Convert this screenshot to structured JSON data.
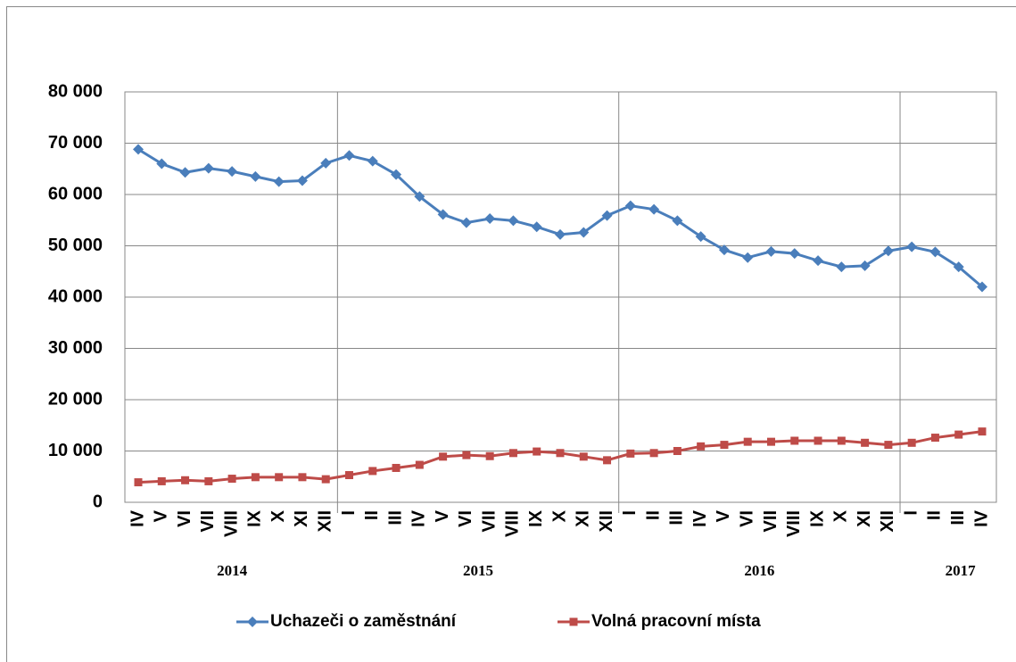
{
  "chart_data": {
    "type": "line",
    "category_groups": [
      {
        "label": "2014",
        "categories": [
          "IV",
          "V",
          "VI",
          "VII",
          "VIII",
          "IX",
          "X",
          "XI",
          "XII"
        ]
      },
      {
        "label": "2015",
        "categories": [
          "I",
          "II",
          "III",
          "IV",
          "V",
          "VI",
          "VII",
          "VIII",
          "IX",
          "X",
          "XI",
          "XII"
        ]
      },
      {
        "label": "2016",
        "categories": [
          "I",
          "II",
          "III",
          "IV",
          "V",
          "VI",
          "VII",
          "VIII",
          "IX",
          "X",
          "XI",
          "XII"
        ]
      },
      {
        "label": "2017",
        "categories": [
          "I",
          "II",
          "III",
          "IV"
        ]
      }
    ],
    "series": [
      {
        "name": "Uchazeči o zaměstnání",
        "color": "#4a7ebb",
        "marker": "diamond",
        "values": [
          68800,
          66000,
          64300,
          65100,
          64500,
          63500,
          62500,
          62700,
          66100,
          67600,
          66500,
          63900,
          59600,
          56100,
          54500,
          55300,
          54900,
          53700,
          52200,
          52600,
          55900,
          57800,
          57100,
          54900,
          51800,
          49200,
          47700,
          48900,
          48500,
          47100,
          45900,
          46100,
          49000,
          49800,
          48800,
          45900,
          42000
        ]
      },
      {
        "name": "Volná pracovní místa",
        "color": "#be4b48",
        "marker": "square",
        "values": [
          3900,
          4100,
          4300,
          4100,
          4600,
          4900,
          4900,
          4900,
          4500,
          5300,
          6100,
          6700,
          7300,
          8900,
          9200,
          9000,
          9600,
          9900,
          9600,
          8900,
          8200,
          9500,
          9600,
          10000,
          10900,
          11200,
          11800,
          11800,
          12000,
          12000,
          12000,
          11600,
          11200,
          11600,
          12600,
          13200,
          13800
        ]
      }
    ],
    "ylim": [
      0,
      80000
    ],
    "yticks": [
      0,
      {
        "value": 10000,
        "label": "10 000"
      },
      {
        "value": 20000,
        "label": "20 000"
      },
      {
        "value": 30000,
        "label": "30 000"
      },
      {
        "value": 40000,
        "label": "40 000"
      },
      {
        "value": 50000,
        "label": "50 000"
      },
      {
        "value": 60000,
        "label": "60 000"
      },
      {
        "value": 70000,
        "label": "70 000"
      },
      {
        "value": 80000,
        "label": "80 000"
      }
    ],
    "grid": true,
    "legend": "bottom"
  }
}
